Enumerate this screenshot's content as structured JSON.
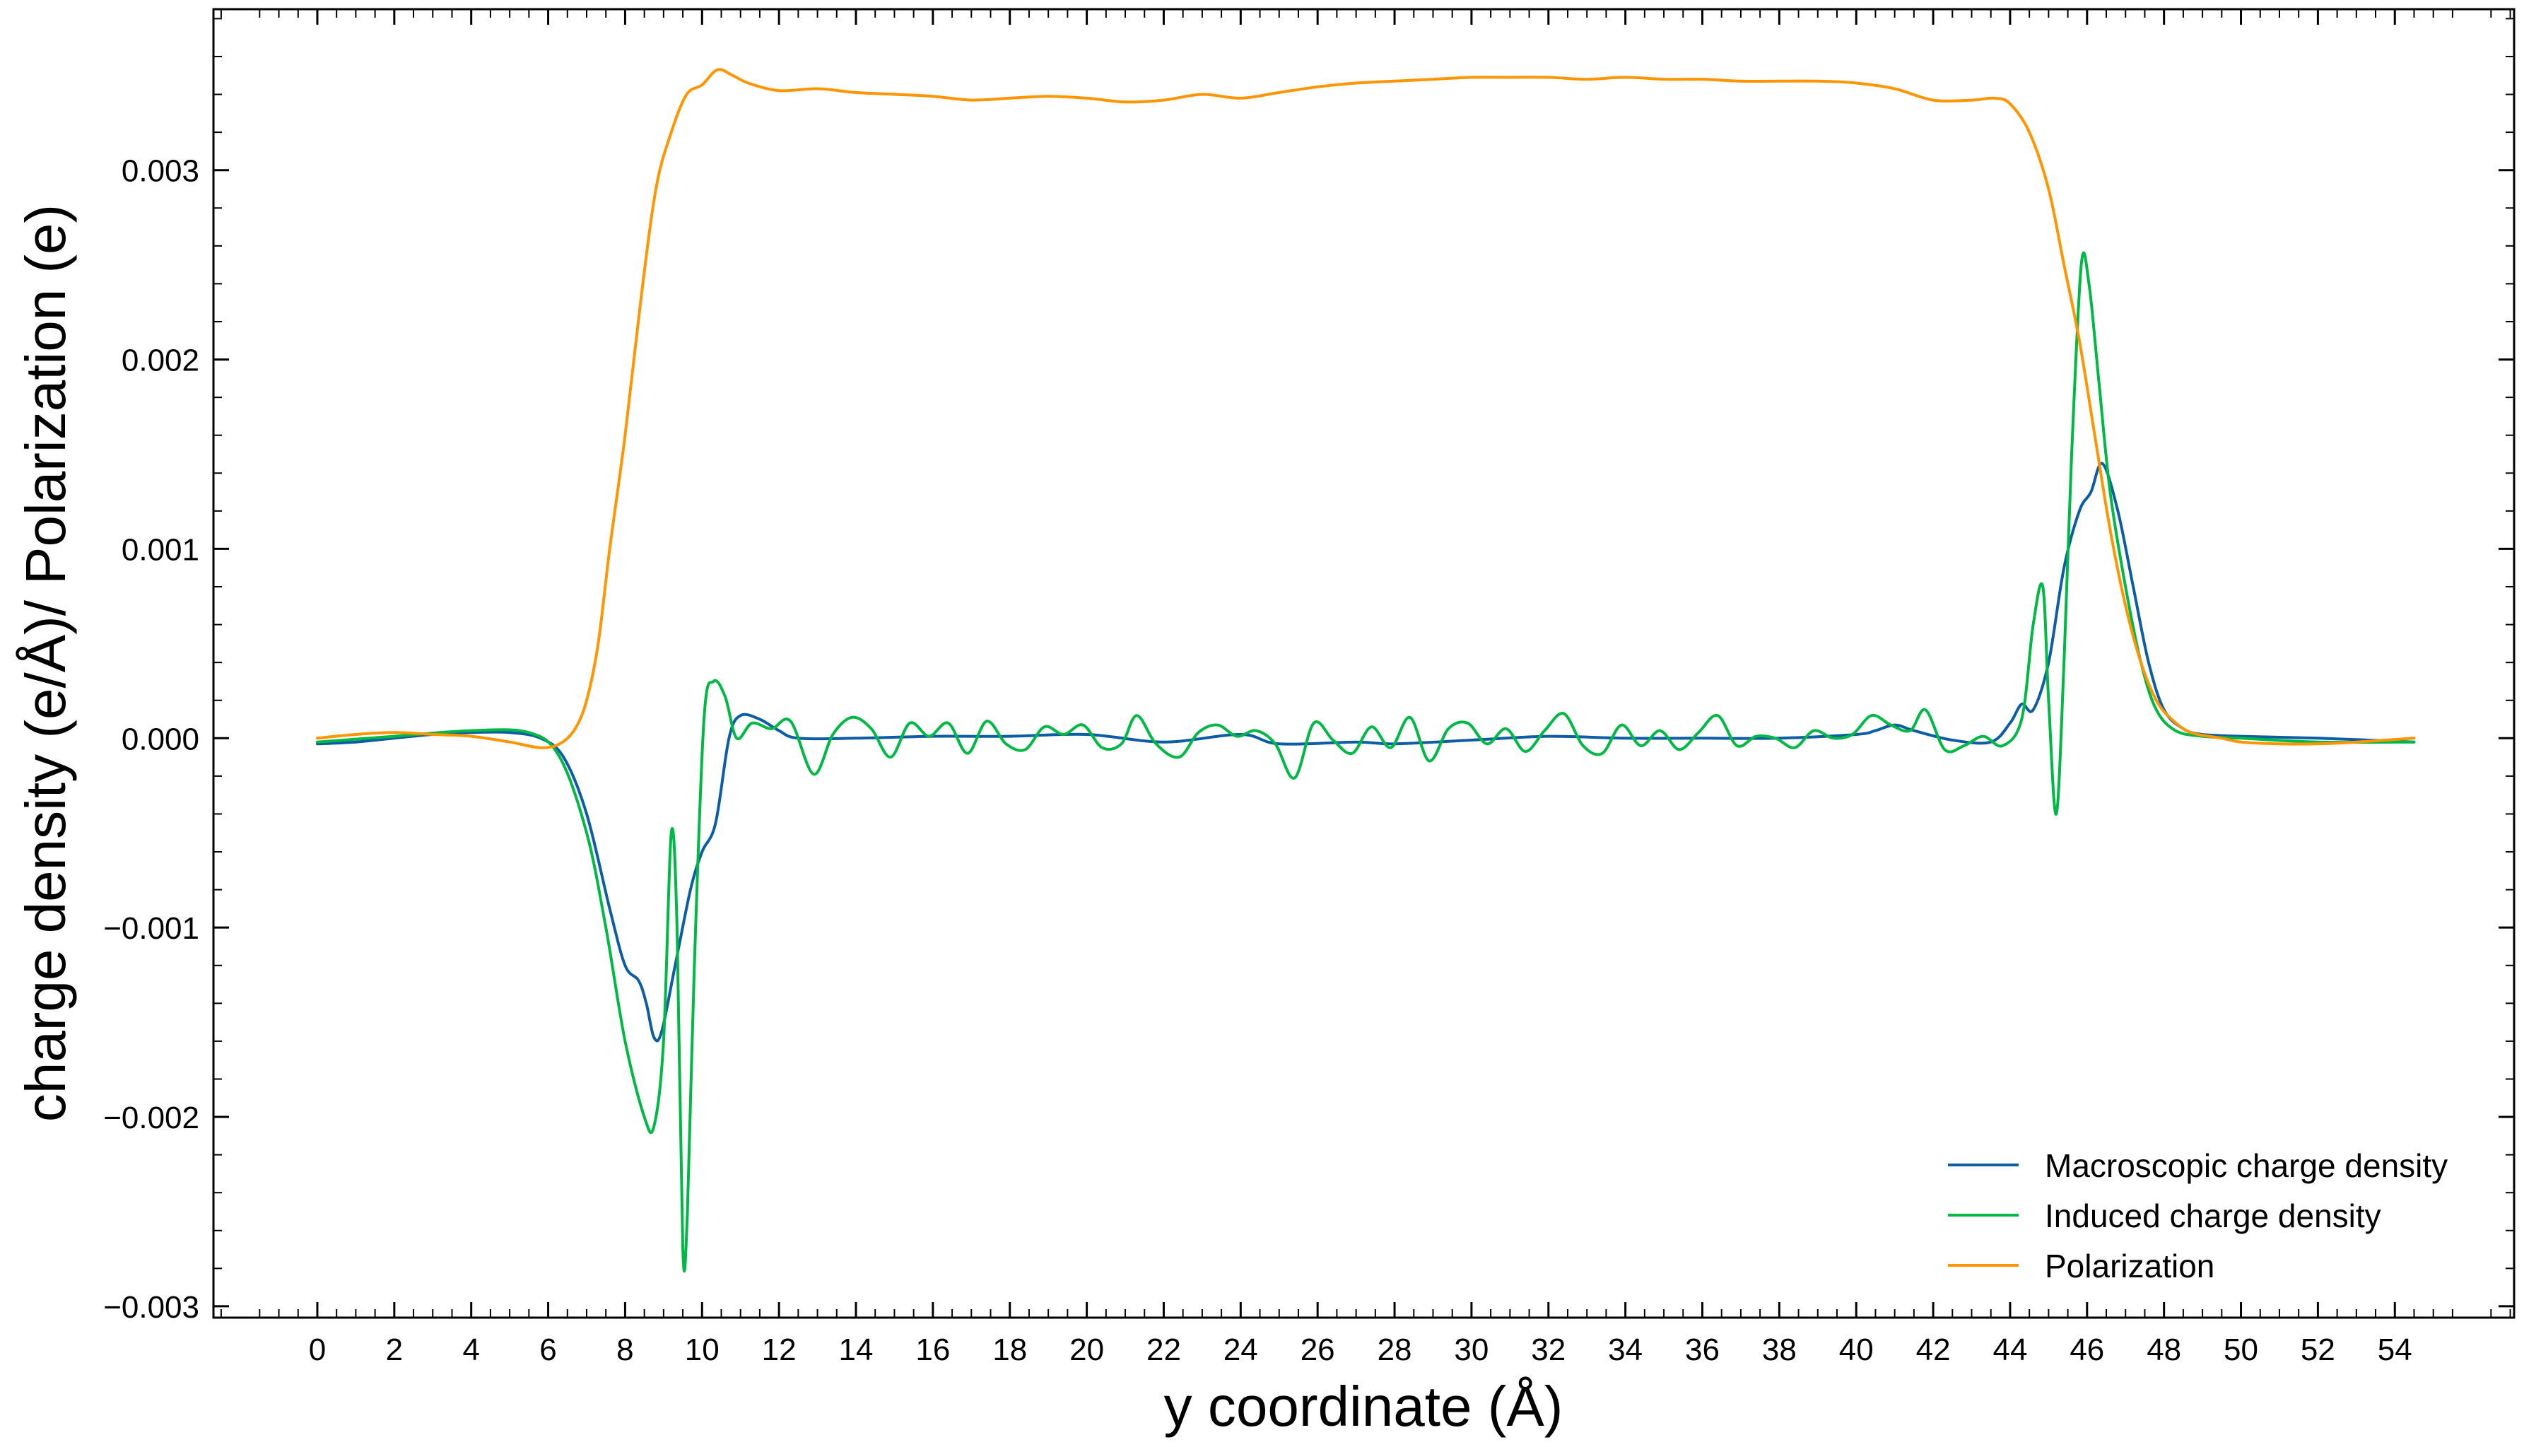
{
  "chart_data": {
    "type": "line",
    "title": "",
    "xlabel": "y coordinate (Å)",
    "ylabel": "charge density (e/Å)/ Polarization (e)",
    "xlim": [
      -2.7,
      57.1
    ],
    "ylim": [
      -0.00306,
      0.00385
    ],
    "x_ticks": [
      0,
      2,
      4,
      6,
      8,
      10,
      12,
      14,
      16,
      18,
      20,
      22,
      24,
      26,
      28,
      30,
      32,
      34,
      36,
      38,
      40,
      42,
      44,
      46,
      48,
      50,
      52,
      54
    ],
    "x_tick_labels": [
      "0",
      "2",
      "4",
      "6",
      "8",
      "10",
      "12",
      "14",
      "16",
      "18",
      "20",
      "22",
      "24",
      "26",
      "28",
      "30",
      "32",
      "34",
      "36",
      "38",
      "40",
      "42",
      "44",
      "46",
      "48",
      "50",
      "52",
      "54"
    ],
    "y_ticks": [
      -0.003,
      -0.002,
      -0.001,
      0.0,
      0.001,
      0.002,
      0.003
    ],
    "y_tick_labels": [
      "−0.003",
      "−0.002",
      "−0.001",
      "0.000",
      "0.001",
      "0.002",
      "0.003"
    ],
    "grid": false,
    "legend_position": "bottom-right",
    "series": [
      {
        "name": "Macroscopic charge density",
        "color": "#0C5DA5",
        "points": [
          [
            0,
            -3e-05
          ],
          [
            1,
            -2e-05
          ],
          [
            2,
            0.0
          ],
          [
            3,
            2e-05
          ],
          [
            4,
            3e-05
          ],
          [
            5,
            3e-05
          ],
          [
            5.8,
            0.0
          ],
          [
            6.4,
            -0.0001
          ],
          [
            7.0,
            -0.0004
          ],
          [
            7.6,
            -0.0009
          ],
          [
            8.0,
            -0.0012
          ],
          [
            8.35,
            -0.00128
          ],
          [
            8.55,
            -0.0014
          ],
          [
            8.75,
            -0.00158
          ],
          [
            8.95,
            -0.00155
          ],
          [
            9.3,
            -0.0012
          ],
          [
            9.7,
            -0.0008
          ],
          [
            10.0,
            -0.0006
          ],
          [
            10.35,
            -0.00045
          ],
          [
            10.7,
            0.0
          ],
          [
            11.0,
            0.00012
          ],
          [
            11.5,
            0.0001
          ],
          [
            12.0,
            4e-05
          ],
          [
            12.5,
            0.0
          ],
          [
            14,
            0.0
          ],
          [
            16,
            1e-05
          ],
          [
            18,
            1e-05
          ],
          [
            20,
            2e-05
          ],
          [
            22,
            -2e-05
          ],
          [
            24,
            2e-05
          ],
          [
            25,
            -3e-05
          ],
          [
            27,
            -2e-05
          ],
          [
            28,
            -3e-05
          ],
          [
            30,
            -1e-05
          ],
          [
            32,
            1e-05
          ],
          [
            34,
            0.0
          ],
          [
            36,
            0.0
          ],
          [
            38,
            0.0
          ],
          [
            40,
            2e-05
          ],
          [
            40.5,
            4e-05
          ],
          [
            41,
            7e-05
          ],
          [
            41.5,
            4e-05
          ],
          [
            42.5,
            -1e-05
          ],
          [
            43.5,
            -2e-05
          ],
          [
            44.0,
            8e-05
          ],
          [
            44.3,
            0.00018
          ],
          [
            44.6,
            0.00015
          ],
          [
            45.0,
            0.0004
          ],
          [
            45.4,
            0.0009
          ],
          [
            45.8,
            0.0012
          ],
          [
            46.1,
            0.0013
          ],
          [
            46.4,
            0.00145
          ],
          [
            46.8,
            0.0012
          ],
          [
            47.2,
            0.0008
          ],
          [
            47.6,
            0.0004
          ],
          [
            48.0,
            0.00015
          ],
          [
            48.5,
            5e-05
          ],
          [
            49.0,
            2e-05
          ],
          [
            50,
            1e-05
          ],
          [
            52,
            0.0
          ],
          [
            54.5,
            -2e-05
          ]
        ]
      },
      {
        "name": "Induced charge density",
        "color": "#00B945",
        "points": [
          [
            0,
            -2e-05
          ],
          [
            2,
            1e-05
          ],
          [
            4,
            4e-05
          ],
          [
            5.5,
            3e-05
          ],
          [
            6.3,
            -0.0001
          ],
          [
            7.0,
            -0.0005
          ],
          [
            7.5,
            -0.001
          ],
          [
            8.0,
            -0.0016
          ],
          [
            8.5,
            -0.002
          ],
          [
            8.75,
            -0.00205
          ],
          [
            9.0,
            -0.0016
          ],
          [
            9.2,
            -0.0005
          ],
          [
            9.35,
            -0.001
          ],
          [
            9.5,
            -0.0027
          ],
          [
            9.62,
            -0.0025
          ],
          [
            9.8,
            -0.0012
          ],
          [
            10.05,
            0.0001
          ],
          [
            10.3,
            0.0003
          ],
          [
            10.6,
            0.00022
          ],
          [
            10.9,
            0.0
          ],
          [
            11.3,
            8e-05
          ],
          [
            11.8,
            5e-05
          ],
          [
            12.3,
            9e-05
          ],
          [
            12.9,
            -0.00019
          ],
          [
            13.4,
            2e-05
          ],
          [
            13.9,
            0.00011
          ],
          [
            14.4,
            5e-05
          ],
          [
            14.9,
            -0.0001
          ],
          [
            15.4,
            8e-05
          ],
          [
            15.9,
            1e-05
          ],
          [
            16.4,
            8e-05
          ],
          [
            16.9,
            -8e-05
          ],
          [
            17.4,
            9e-05
          ],
          [
            17.9,
            -3e-05
          ],
          [
            18.4,
            -6e-05
          ],
          [
            18.9,
            6e-05
          ],
          [
            19.4,
            2e-05
          ],
          [
            19.9,
            7e-05
          ],
          [
            20.4,
            -5e-05
          ],
          [
            20.9,
            -3e-05
          ],
          [
            21.3,
            0.00012
          ],
          [
            21.8,
            -3e-05
          ],
          [
            22.4,
            -0.0001
          ],
          [
            22.9,
            3e-05
          ],
          [
            23.4,
            7e-05
          ],
          [
            23.9,
            1e-05
          ],
          [
            24.4,
            4e-05
          ],
          [
            24.9,
            -3e-05
          ],
          [
            25.4,
            -0.00021
          ],
          [
            25.9,
            8e-05
          ],
          [
            26.4,
            -1e-05
          ],
          [
            26.9,
            -8e-05
          ],
          [
            27.4,
            6e-05
          ],
          [
            27.9,
            -5e-05
          ],
          [
            28.4,
            0.00011
          ],
          [
            28.9,
            -0.00012
          ],
          [
            29.4,
            5e-05
          ],
          [
            29.9,
            8e-05
          ],
          [
            30.4,
            -3e-05
          ],
          [
            30.9,
            5e-05
          ],
          [
            31.4,
            -7e-05
          ],
          [
            31.9,
            4e-05
          ],
          [
            32.4,
            0.00013
          ],
          [
            32.9,
            -4e-05
          ],
          [
            33.4,
            -8e-05
          ],
          [
            33.9,
            7e-05
          ],
          [
            34.4,
            -4e-05
          ],
          [
            34.9,
            4e-05
          ],
          [
            35.4,
            -6e-05
          ],
          [
            35.9,
            3e-05
          ],
          [
            36.4,
            0.00012
          ],
          [
            36.9,
            -4e-05
          ],
          [
            37.4,
            1e-05
          ],
          [
            37.9,
            0.0
          ],
          [
            38.4,
            -5e-05
          ],
          [
            38.9,
            4e-05
          ],
          [
            39.4,
            0.0
          ],
          [
            39.9,
            2e-05
          ],
          [
            40.4,
            0.00012
          ],
          [
            40.9,
            7e-05
          ],
          [
            41.4,
            4e-05
          ],
          [
            41.8,
            0.00015
          ],
          [
            42.3,
            -6e-05
          ],
          [
            42.8,
            -4e-05
          ],
          [
            43.3,
            1e-05
          ],
          [
            43.8,
            -4e-05
          ],
          [
            44.3,
            0.0001
          ],
          [
            44.6,
            0.0006
          ],
          [
            44.85,
            0.0008
          ],
          [
            45.0,
            0.0002
          ],
          [
            45.2,
            -0.0004
          ],
          [
            45.4,
            0.0004
          ],
          [
            45.6,
            0.0015
          ],
          [
            45.85,
            0.0025
          ],
          [
            46.05,
            0.0024
          ],
          [
            46.3,
            0.0019
          ],
          [
            46.6,
            0.0013
          ],
          [
            47.0,
            0.0008
          ],
          [
            47.4,
            0.0004
          ],
          [
            47.8,
            0.00015
          ],
          [
            48.3,
            4e-05
          ],
          [
            49.0,
            1e-05
          ],
          [
            50,
            0.0
          ],
          [
            52,
            -2e-05
          ],
          [
            54.5,
            -2e-05
          ]
        ]
      },
      {
        "name": "Polarization",
        "color": "#FF9500",
        "points": [
          [
            0,
            0.0
          ],
          [
            1,
            2e-05
          ],
          [
            2,
            3e-05
          ],
          [
            3,
            2e-05
          ],
          [
            4,
            1e-05
          ],
          [
            5,
            -2e-05
          ],
          [
            5.8,
            -5e-05
          ],
          [
            6.3,
            -3e-05
          ],
          [
            6.7,
            5e-05
          ],
          [
            7.0,
            0.0002
          ],
          [
            7.3,
            0.0005
          ],
          [
            7.6,
            0.001
          ],
          [
            8.0,
            0.0016
          ],
          [
            8.4,
            0.0023
          ],
          [
            8.8,
            0.0029
          ],
          [
            9.2,
            0.0032
          ],
          [
            9.6,
            0.0034
          ],
          [
            10.0,
            0.00345
          ],
          [
            10.4,
            0.00353
          ],
          [
            10.8,
            0.0035
          ],
          [
            11.2,
            0.00346
          ],
          [
            12,
            0.00342
          ],
          [
            13,
            0.00343
          ],
          [
            14,
            0.00341
          ],
          [
            15,
            0.0034
          ],
          [
            16,
            0.00339
          ],
          [
            17,
            0.00337
          ],
          [
            18,
            0.00338
          ],
          [
            19,
            0.00339
          ],
          [
            20,
            0.00338
          ],
          [
            21,
            0.00336
          ],
          [
            22,
            0.00337
          ],
          [
            23,
            0.0034
          ],
          [
            24,
            0.00338
          ],
          [
            25,
            0.00341
          ],
          [
            26,
            0.00344
          ],
          [
            27,
            0.00346
          ],
          [
            28,
            0.00347
          ],
          [
            29,
            0.00348
          ],
          [
            30,
            0.00349
          ],
          [
            31,
            0.00349
          ],
          [
            32,
            0.00349
          ],
          [
            33,
            0.00348
          ],
          [
            34,
            0.00349
          ],
          [
            35,
            0.00348
          ],
          [
            36,
            0.00348
          ],
          [
            37,
            0.00347
          ],
          [
            38,
            0.00347
          ],
          [
            39,
            0.00347
          ],
          [
            40,
            0.00346
          ],
          [
            41,
            0.00343
          ],
          [
            42,
            0.00337
          ],
          [
            43,
            0.00337
          ],
          [
            43.6,
            0.00338
          ],
          [
            44.0,
            0.00335
          ],
          [
            44.5,
            0.0032
          ],
          [
            45.0,
            0.0029
          ],
          [
            45.4,
            0.0025
          ],
          [
            45.8,
            0.0021
          ],
          [
            46.2,
            0.0016
          ],
          [
            46.6,
            0.0011
          ],
          [
            47.0,
            0.0007
          ],
          [
            47.4,
            0.0004
          ],
          [
            47.8,
            0.0002
          ],
          [
            48.2,
            0.0001
          ],
          [
            48.7,
            3e-05
          ],
          [
            49.5,
            0.0
          ],
          [
            50,
            -2e-05
          ],
          [
            51,
            -3e-05
          ],
          [
            52,
            -3e-05
          ],
          [
            53,
            -2e-05
          ],
          [
            54.5,
            0.0
          ]
        ]
      }
    ]
  }
}
